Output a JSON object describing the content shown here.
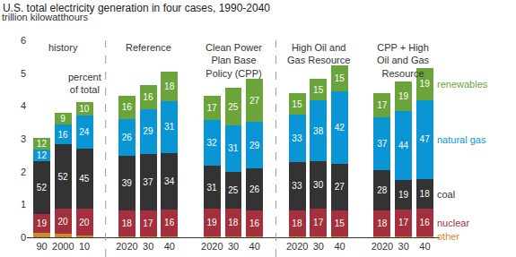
{
  "chart_data": {
    "type": "bar",
    "title": "U.S. total electricity generation in four cases, 1990-2040",
    "subtitle": "trillion kilowatthours",
    "stacked": true,
    "grid": false,
    "ylim": [
      0,
      6
    ],
    "yticks": [
      0,
      1,
      2,
      3,
      4,
      5,
      6
    ],
    "panels": [
      "history",
      "Reference",
      "Clean Power Plan Base Policy (CPP)",
      "High Oil and Gas Resource",
      "CPP + High Oil and Gas Resource"
    ],
    "categories": [
      "90",
      "2000",
      "10",
      null,
      "2020",
      "30",
      "40",
      null,
      "2020",
      "30",
      "40",
      null,
      "2020",
      "30",
      "40",
      null,
      "2020",
      "30",
      "40"
    ],
    "annotations": [
      {
        "text": "percent of total",
        "category": "10"
      }
    ],
    "series": [
      {
        "name": "other",
        "color": "#d08a2e",
        "values": [
          0.14,
          0.11,
          0.05,
          null,
          0.04,
          0.04,
          0.04,
          null,
          0.04,
          0.04,
          0.04,
          null,
          0.04,
          0.04,
          0.04,
          null,
          0.04,
          0.04,
          0.04
        ],
        "percents": [
          null,
          null,
          null,
          null,
          null,
          null,
          null,
          null,
          null,
          null,
          null,
          null,
          null,
          null,
          null,
          null,
          null,
          null,
          null
        ]
      },
      {
        "name": "nuclear",
        "color": "#a3303c",
        "values": [
          0.58,
          0.75,
          0.81,
          null,
          0.77,
          0.79,
          0.81,
          null,
          0.82,
          0.82,
          0.78,
          null,
          0.79,
          0.82,
          0.79,
          null,
          0.78,
          0.81,
          0.82
        ],
        "percents": [
          19,
          20,
          20,
          null,
          18,
          17,
          16,
          null,
          19,
          18,
          16,
          null,
          18,
          17,
          15,
          null,
          18,
          17,
          16
        ]
      },
      {
        "name": "coal",
        "color": "#333333",
        "values": [
          1.59,
          1.97,
          1.85,
          null,
          1.68,
          1.72,
          1.72,
          null,
          1.33,
          1.14,
          1.27,
          null,
          1.45,
          1.46,
          1.42,
          null,
          1.22,
          0.9,
          0.92
        ],
        "percents": [
          52,
          52,
          45,
          null,
          39,
          37,
          34,
          null,
          31,
          25,
          26,
          null,
          33,
          30,
          27,
          null,
          28,
          19,
          18
        ]
      },
      {
        "name": "natural gas",
        "color": "#0a96d4",
        "values": [
          0.37,
          0.61,
          0.99,
          null,
          1.12,
          1.35,
          1.57,
          null,
          1.38,
          1.41,
          1.42,
          null,
          1.45,
          1.84,
          2.2,
          null,
          1.61,
          2.09,
          2.4
        ],
        "percents": [
          12,
          16,
          24,
          null,
          26,
          29,
          31,
          null,
          32,
          31,
          29,
          null,
          33,
          38,
          42,
          null,
          37,
          44,
          47
        ]
      },
      {
        "name": "renewables",
        "color": "#6aa43a",
        "values": [
          0.36,
          0.36,
          0.41,
          null,
          0.69,
          0.74,
          0.91,
          null,
          0.73,
          1.14,
          1.32,
          null,
          0.66,
          0.68,
          0.79,
          null,
          0.74,
          0.9,
          0.97
        ],
        "percents": [
          12,
          9,
          10,
          null,
          16,
          16,
          18,
          null,
          17,
          25,
          27,
          null,
          15,
          15,
          15,
          null,
          17,
          19,
          19
        ]
      }
    ]
  }
}
